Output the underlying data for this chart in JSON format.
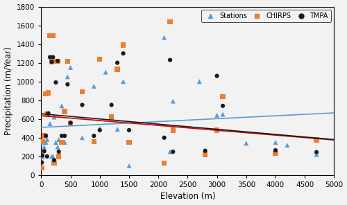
{
  "stations_x": [
    10,
    20,
    30,
    50,
    80,
    100,
    120,
    150,
    180,
    200,
    220,
    250,
    280,
    300,
    350,
    400,
    450,
    500,
    700,
    900,
    1000,
    1100,
    1300,
    1400,
    1500,
    2100,
    2200,
    2250,
    2700,
    2800,
    3000,
    3100,
    3500,
    4000,
    4200,
    4700
  ],
  "stations_y": [
    150,
    200,
    350,
    300,
    350,
    380,
    650,
    550,
    200,
    200,
    620,
    350,
    300,
    380,
    740,
    350,
    1050,
    1150,
    400,
    950,
    500,
    1100,
    490,
    1000,
    100,
    1470,
    250,
    790,
    1000,
    220,
    640,
    650,
    340,
    350,
    320,
    220
  ],
  "chirps_x": [
    10,
    20,
    50,
    80,
    100,
    120,
    150,
    180,
    200,
    220,
    250,
    280,
    300,
    350,
    400,
    450,
    500,
    700,
    900,
    1000,
    1200,
    1300,
    1400,
    1500,
    2100,
    2200,
    2250,
    2800,
    3000,
    3100,
    4000,
    4700
  ],
  "chirps_y": [
    75,
    360,
    420,
    870,
    650,
    880,
    1490,
    1210,
    1490,
    130,
    1215,
    1215,
    200,
    350,
    680,
    1215,
    550,
    890,
    360,
    1240,
    620,
    1130,
    1390,
    350,
    130,
    1640,
    480,
    220,
    480,
    840,
    230,
    375
  ],
  "tmpa_x": [
    10,
    20,
    50,
    80,
    100,
    120,
    150,
    180,
    200,
    220,
    250,
    280,
    300,
    350,
    400,
    450,
    500,
    700,
    900,
    1000,
    1200,
    1300,
    1400,
    1500,
    2100,
    2200,
    2250,
    2800,
    3000,
    3100,
    4000,
    4700
  ],
  "tmpa_y": [
    135,
    210,
    255,
    420,
    200,
    660,
    1260,
    1210,
    1260,
    160,
    990,
    1220,
    250,
    420,
    420,
    970,
    560,
    750,
    420,
    480,
    750,
    1200,
    1300,
    480,
    400,
    1230,
    250,
    260,
    1060,
    740,
    265,
    245
  ],
  "stations_trend_x": [
    0,
    5000
  ],
  "stations_trend_y": [
    510,
    665
  ],
  "chirps_trend_x": [
    0,
    5000
  ],
  "chirps_trend_y": [
    635,
    375
  ],
  "tmpa_trend_x": [
    0,
    5000
  ],
  "tmpa_trend_y": [
    655,
    380
  ],
  "station_color": "#5B9BD5",
  "chirps_color": "#ED7D31",
  "tmpa_color": "#1a1a1a",
  "trend_station_color": "#5B9BD5",
  "trend_chirps_color": "#CC0000",
  "trend_tmpa_color": "#1a1a1a",
  "xlabel": "Elevation (m)",
  "ylabel": "Precipitation (m/Year)",
  "xlim": [
    0,
    5000
  ],
  "ylim": [
    0,
    1800
  ],
  "xticks": [
    0,
    500,
    1000,
    1500,
    2000,
    2500,
    3000,
    3500,
    4000,
    4500,
    5000
  ],
  "yticks": [
    0,
    200,
    400,
    600,
    800,
    1000,
    1200,
    1400,
    1600,
    1800
  ],
  "legend_labels": [
    "Stations",
    "CHIRPS",
    "TMPA"
  ],
  "bg_color": "#f2f2f2"
}
